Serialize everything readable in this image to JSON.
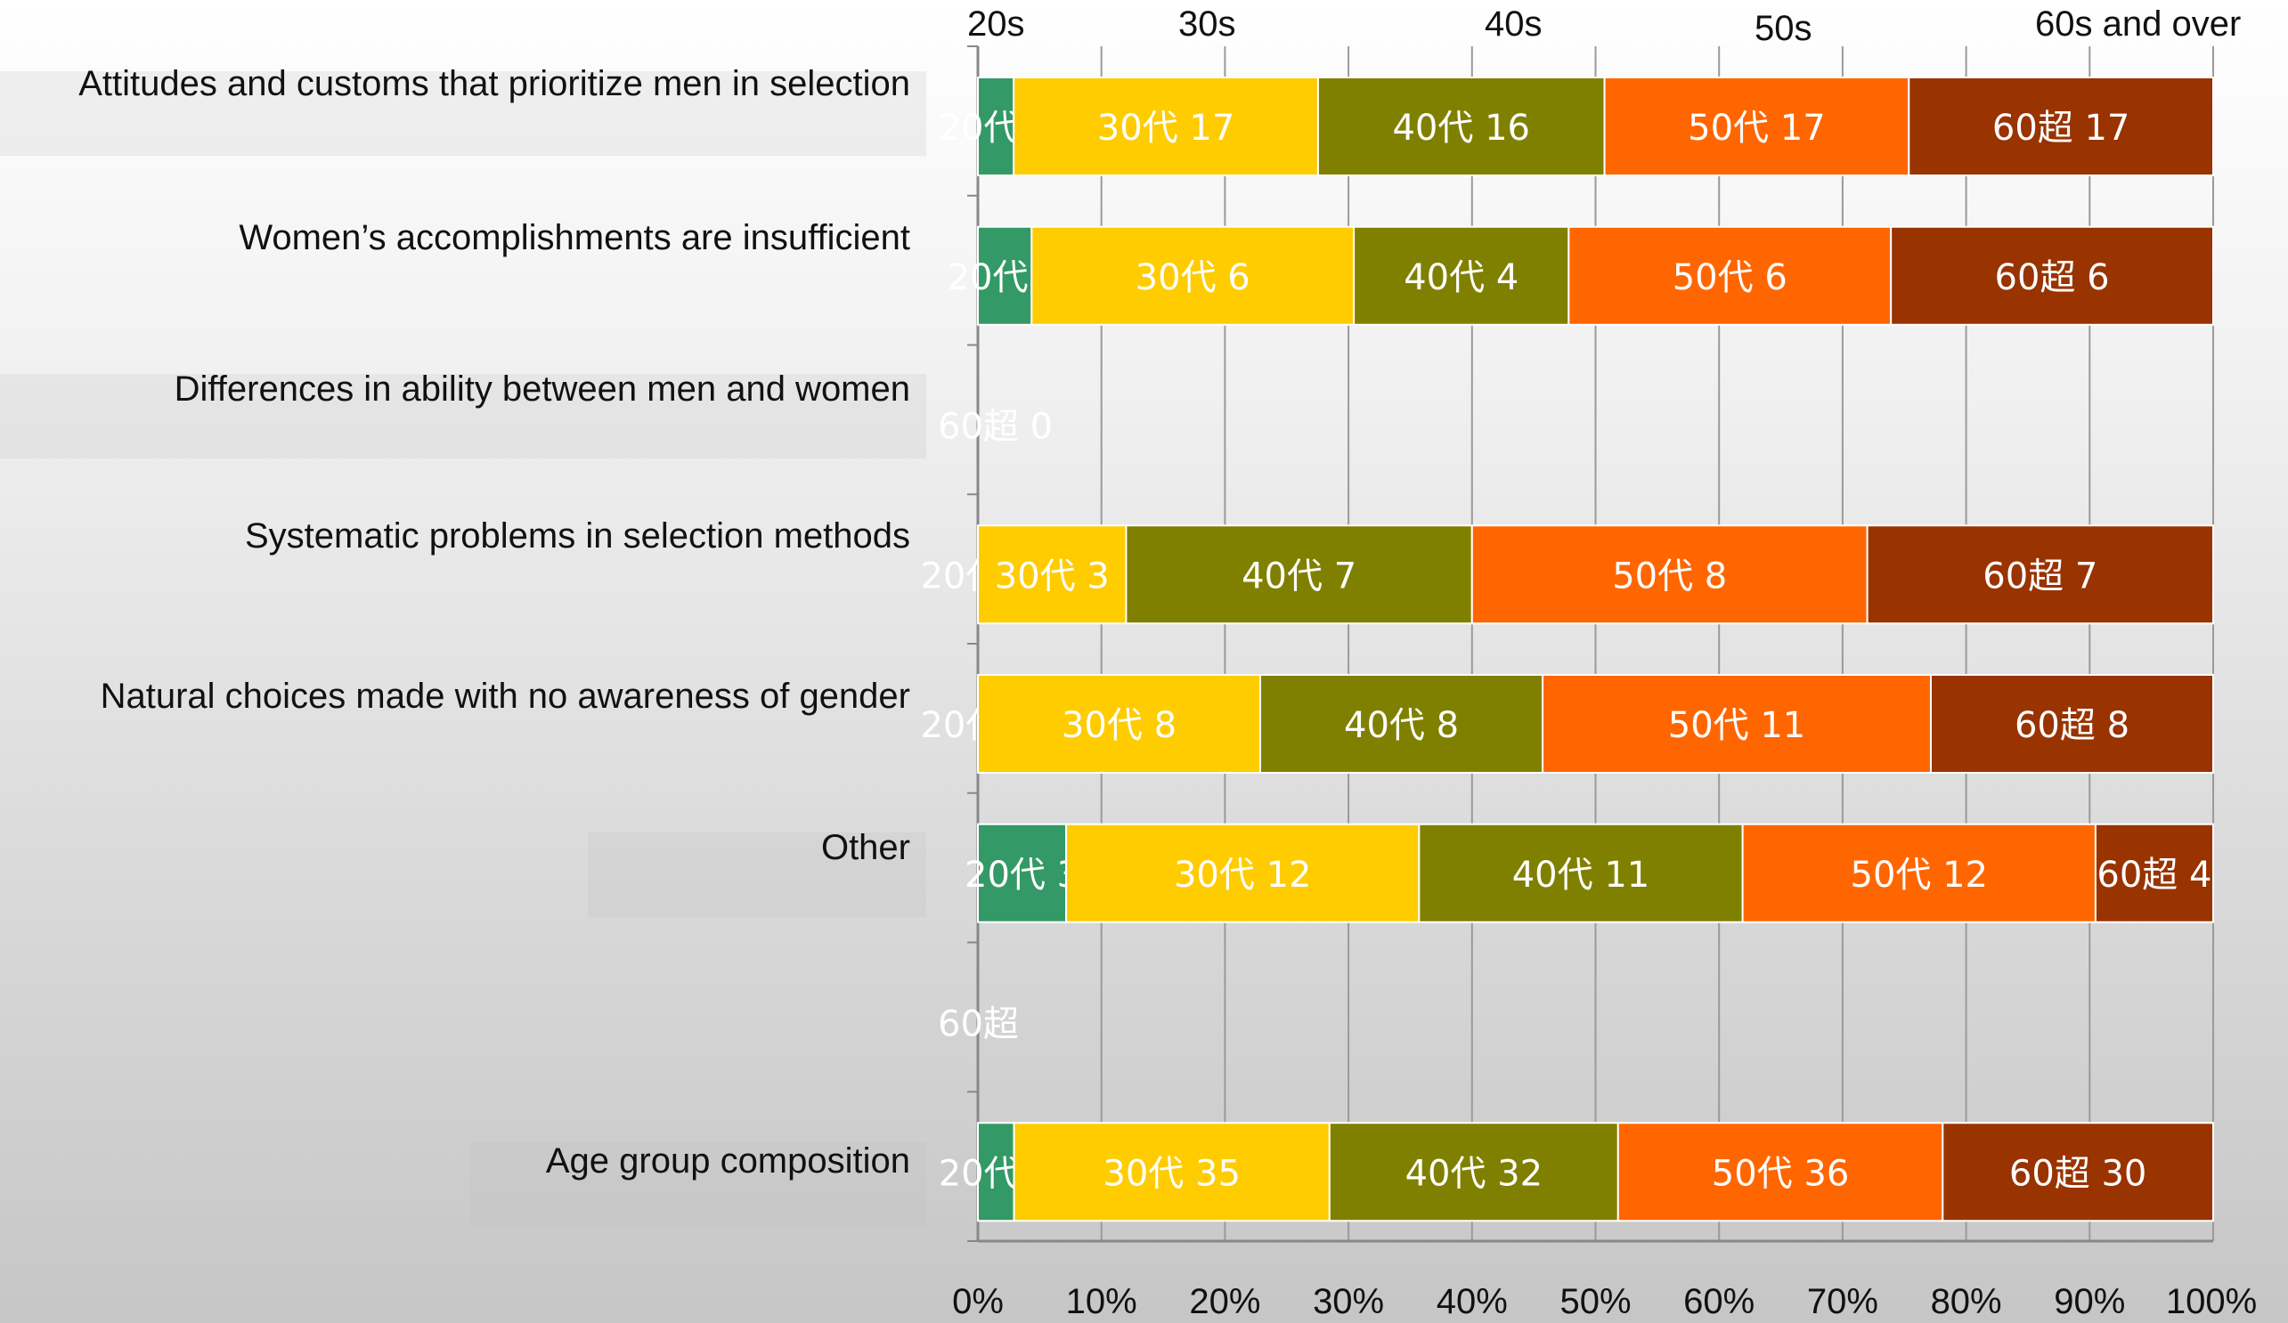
{
  "chart_data": {
    "type": "bar",
    "orientation": "horizontal",
    "stacked": "percent",
    "categories": [
      "Attitudes and customs that prioritize men in selection",
      "Women’s accomplishments are insufficient",
      "Differences in ability between men and women",
      "Systematic problems in selection methods",
      "Natural choices made with no awareness of gender",
      "Other",
      "",
      "Age group composition"
    ],
    "legend": [
      "20s",
      "30s",
      "40s",
      "50s",
      "60s and over"
    ],
    "legend_position": "top",
    "series": [
      {
        "name": "20s",
        "label_prefix": "20代",
        "color": "#339966",
        "values": [
          2,
          1,
          0,
          0,
          0,
          3,
          null,
          4
        ]
      },
      {
        "name": "30s",
        "label_prefix": "30代",
        "color": "#ffcc00",
        "values": [
          17,
          6,
          0,
          3,
          8,
          12,
          null,
          35
        ]
      },
      {
        "name": "40s",
        "label_prefix": "40代",
        "color": "#808000",
        "values": [
          16,
          4,
          0,
          7,
          8,
          11,
          null,
          32
        ]
      },
      {
        "name": "50s",
        "label_prefix": "50代",
        "color": "#ff6600",
        "values": [
          17,
          6,
          0,
          8,
          11,
          12,
          null,
          36
        ]
      },
      {
        "name": "60s and over",
        "label_prefix": "60超",
        "color": "#993300",
        "values": [
          17,
          6,
          0,
          7,
          8,
          4,
          null,
          30
        ]
      }
    ],
    "empty_row_labels": [
      "60超 0",
      "60超"
    ],
    "x_ticks": [
      "0%",
      "10%",
      "20%",
      "30%",
      "40%",
      "50%",
      "60%",
      "70%",
      "80%",
      "90%",
      "100%"
    ],
    "xlim": [
      0,
      100
    ],
    "grid": true
  }
}
